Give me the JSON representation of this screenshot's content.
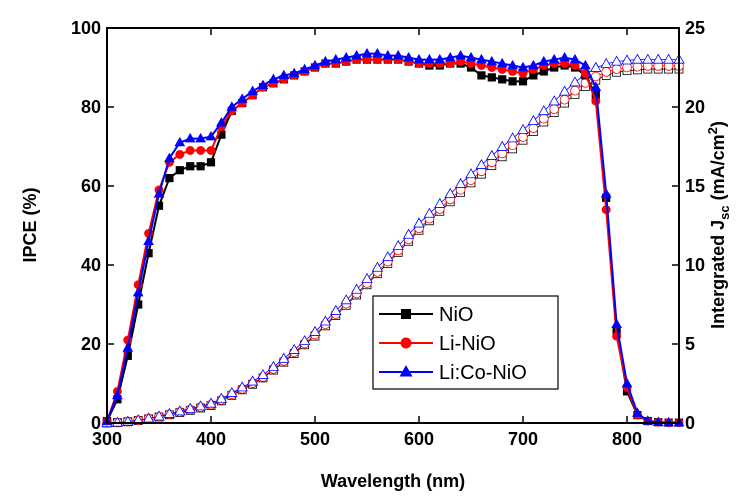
{
  "chart_data": {
    "type": "line",
    "xlabel": "Wavelength (nm)",
    "ylabel": "IPCE (%)",
    "y2label": {
      "text": "Intergrated J",
      "sub": "sc",
      "unit": " (mA/cm",
      "sup": "2",
      "end": ")"
    },
    "x": [
      300,
      310,
      320,
      330,
      340,
      350,
      360,
      370,
      380,
      390,
      400,
      410,
      420,
      430,
      440,
      450,
      460,
      470,
      480,
      490,
      500,
      510,
      520,
      530,
      540,
      550,
      560,
      570,
      580,
      590,
      600,
      610,
      620,
      630,
      640,
      650,
      660,
      670,
      680,
      690,
      700,
      710,
      720,
      730,
      740,
      750,
      760,
      770,
      780,
      790,
      800,
      810,
      820,
      830,
      840,
      850
    ],
    "xlim": [
      300,
      850
    ],
    "xticks": [
      300,
      400,
      500,
      600,
      700,
      800
    ],
    "ylim": [
      0,
      100
    ],
    "yticks": [
      0,
      20,
      40,
      60,
      80,
      100
    ],
    "y2lim": [
      0,
      25
    ],
    "y2ticks": [
      0,
      5,
      10,
      15,
      20,
      25
    ],
    "legend": "lower-right",
    "series": [
      {
        "name": "NiO",
        "color": "#000000",
        "marker": "square",
        "filled": true,
        "values": [
          0.5,
          6,
          17,
          30,
          43,
          55,
          62,
          64,
          65,
          65,
          66,
          73,
          79,
          81,
          83,
          85,
          86,
          87,
          88,
          89,
          90,
          91,
          91,
          91.5,
          92,
          92,
          92,
          92,
          92,
          91.5,
          91,
          90.5,
          90.5,
          91,
          91,
          90,
          88,
          87.5,
          87,
          86.5,
          86.5,
          88,
          89,
          90,
          90.5,
          90,
          88,
          83,
          57,
          23,
          8,
          2,
          0.5,
          0.2,
          0.1,
          0.1
        ]
      },
      {
        "name": "Li-NiO",
        "color": "#ff0000",
        "marker": "circle",
        "filled": true,
        "values": [
          0.5,
          8,
          21,
          35,
          48,
          59,
          66,
          68,
          69,
          69,
          69,
          75,
          79,
          81,
          83,
          85,
          86,
          87,
          88,
          89,
          90,
          91,
          91,
          91.5,
          92,
          92,
          92,
          92,
          92,
          91.5,
          91,
          91,
          91,
          91,
          91.5,
          91,
          90.5,
          90,
          89.5,
          89,
          88.5,
          89.5,
          90.5,
          91,
          91,
          90.5,
          88.5,
          81.5,
          54,
          22,
          9,
          2,
          0.5,
          0.2,
          0.1,
          0.1
        ]
      },
      {
        "name": "Li:Co-NiO",
        "color": "#0000ff",
        "marker": "triangle",
        "filled": true,
        "values": [
          0.5,
          7,
          19,
          33,
          46,
          58,
          67,
          71,
          72,
          72,
          72.5,
          76,
          80,
          82,
          84,
          85.5,
          87,
          88,
          88.5,
          89.5,
          90.5,
          91.5,
          92,
          92.5,
          93,
          93.5,
          93.5,
          93,
          93,
          92.5,
          92,
          92,
          92,
          92.5,
          93,
          92.5,
          92,
          91.5,
          91,
          90.5,
          90,
          90.5,
          91.5,
          92,
          92.5,
          92,
          90.5,
          85,
          58,
          25,
          10,
          2.5,
          0.5,
          0.2,
          0.1,
          0.1
        ]
      },
      {
        "color": "#000000",
        "marker": "square",
        "filled": false,
        "axis": "y2",
        "values": [
          0,
          0.03,
          0.08,
          0.16,
          0.26,
          0.38,
          0.52,
          0.66,
          0.8,
          0.95,
          1.1,
          1.4,
          1.75,
          2.1,
          2.45,
          2.85,
          3.35,
          3.85,
          4.4,
          4.95,
          5.5,
          6.15,
          6.8,
          7.45,
          8.1,
          8.75,
          9.45,
          10.1,
          10.8,
          11.5,
          12.2,
          12.8,
          13.4,
          14.0,
          14.6,
          15.2,
          15.75,
          16.3,
          16.85,
          17.35,
          17.9,
          18.45,
          19.05,
          19.65,
          20.25,
          20.8,
          21.3,
          21.7,
          22.0,
          22.2,
          22.3,
          22.35,
          22.4,
          22.4,
          22.4,
          22.4
        ]
      },
      {
        "color": "#ff0000",
        "marker": "circle",
        "filled": false,
        "axis": "y2",
        "values": [
          0,
          0.03,
          0.09,
          0.17,
          0.28,
          0.4,
          0.55,
          0.7,
          0.85,
          1.0,
          1.16,
          1.46,
          1.81,
          2.16,
          2.52,
          2.92,
          3.42,
          3.93,
          4.48,
          5.03,
          5.6,
          6.25,
          6.9,
          7.55,
          8.2,
          8.86,
          9.56,
          10.22,
          10.92,
          11.62,
          12.32,
          12.93,
          13.54,
          14.15,
          14.76,
          15.37,
          15.93,
          16.5,
          17.06,
          17.58,
          18.1,
          18.66,
          19.26,
          19.86,
          20.46,
          21.03,
          21.53,
          21.93,
          22.22,
          22.4,
          22.5,
          22.55,
          22.6,
          22.6,
          22.6,
          22.6
        ]
      },
      {
        "color": "#0000ff",
        "marker": "triangle",
        "filled": false,
        "axis": "y2",
        "values": [
          0,
          0.03,
          0.09,
          0.18,
          0.29,
          0.42,
          0.58,
          0.74,
          0.9,
          1.06,
          1.23,
          1.54,
          1.9,
          2.26,
          2.63,
          3.04,
          3.55,
          4.07,
          4.63,
          5.19,
          5.77,
          6.43,
          7.1,
          7.77,
          8.44,
          9.12,
          9.83,
          10.5,
          11.21,
          11.92,
          12.63,
          13.25,
          13.87,
          14.5,
          15.13,
          15.75,
          16.33,
          16.91,
          17.48,
          18.02,
          18.55,
          19.12,
          19.74,
          20.36,
          20.98,
          21.56,
          22.07,
          22.48,
          22.73,
          22.88,
          22.95,
          23.0,
          23.0,
          23.0,
          23.0,
          23.0
        ]
      }
    ]
  }
}
